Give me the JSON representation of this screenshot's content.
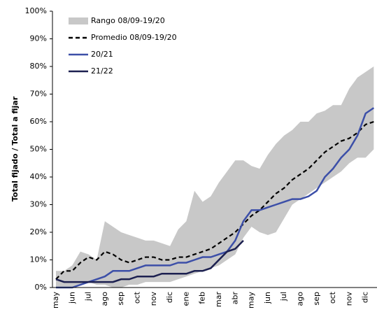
{
  "chart_data": {
    "type": "line",
    "y_label": "Total fijado / Total a fijar",
    "categories": [
      "may",
      null,
      "jun",
      null,
      "jul",
      null,
      "ago",
      null,
      "sep",
      null,
      "oct",
      null,
      "nov",
      null,
      "dic",
      null,
      "ene",
      null,
      "feb",
      null,
      "mar",
      null,
      "abr",
      null,
      "may",
      null,
      "jun",
      null,
      "jul",
      null,
      "ago",
      null,
      "sep",
      null,
      "oct",
      null,
      "nov",
      null,
      "dic",
      null
    ],
    "ylim": [
      0,
      100
    ],
    "yticks": [
      {
        "value": 0,
        "label": "0%"
      },
      {
        "value": 10,
        "label": "10%"
      },
      {
        "value": 20,
        "label": "20%"
      },
      {
        "value": 30,
        "label": "30%"
      },
      {
        "value": 40,
        "label": "40%"
      },
      {
        "value": 50,
        "label": "50%"
      },
      {
        "value": 60,
        "label": "60%"
      },
      {
        "value": 70,
        "label": "70%"
      },
      {
        "value": 80,
        "label": "80%"
      },
      {
        "value": 90,
        "label": "90%"
      },
      {
        "value": 100,
        "label": "100%"
      }
    ],
    "grid": false,
    "legend": "top-left",
    "band": {
      "name": "Rango 08/09-19/20",
      "color": "#c8c8c8",
      "low": [
        0,
        0,
        0,
        1,
        2,
        1,
        1,
        0,
        0,
        1,
        1,
        2,
        2,
        2,
        2,
        3,
        4,
        5,
        6,
        7,
        8,
        10,
        12,
        18,
        22,
        20,
        19,
        20,
        25,
        30,
        32,
        34,
        36,
        38,
        40,
        42,
        45,
        47,
        47,
        50
      ],
      "high": [
        6,
        6,
        8,
        13,
        12,
        10,
        24,
        22,
        20,
        19,
        18,
        17,
        17,
        16,
        15,
        21,
        24,
        35,
        31,
        33,
        38,
        42,
        46,
        46,
        44,
        43,
        48,
        52,
        55,
        57,
        60,
        60,
        63,
        64,
        66,
        66,
        72,
        76,
        78,
        80
      ]
    },
    "series": [
      {
        "name": "Promedio 08/09-19/20",
        "color": "#000000",
        "dash": true,
        "values": [
          3,
          6,
          6,
          9,
          11,
          10,
          13,
          12,
          10,
          9,
          10,
          11,
          11,
          10,
          10,
          11,
          11,
          12,
          13,
          14,
          16,
          18,
          20,
          23,
          26,
          28,
          31,
          34,
          36,
          39,
          41,
          43,
          46,
          49,
          51,
          53,
          54,
          56,
          59,
          60
        ]
      },
      {
        "name": "20/21",
        "color": "#3c4fa8",
        "dash": false,
        "values": [
          0,
          0,
          0,
          1,
          2,
          3,
          4,
          6,
          6,
          6,
          7,
          8,
          8,
          8,
          8,
          9,
          9,
          10,
          11,
          11,
          12,
          13,
          17,
          24,
          28,
          28,
          29,
          30,
          31,
          32,
          32,
          33,
          35,
          40,
          43,
          47,
          50,
          55,
          63,
          65
        ]
      },
      {
        "name": "21/22",
        "color": "#1c2050",
        "dash": false,
        "values": [
          3,
          2,
          2,
          2,
          2,
          2,
          2,
          2,
          3,
          3,
          4,
          4,
          4,
          5,
          5,
          5,
          5,
          6,
          6,
          7,
          10,
          13,
          14,
          17,
          null,
          null,
          null,
          null,
          null,
          null,
          null,
          null,
          null,
          null,
          null,
          null,
          null,
          null,
          null,
          null
        ]
      }
    ]
  }
}
